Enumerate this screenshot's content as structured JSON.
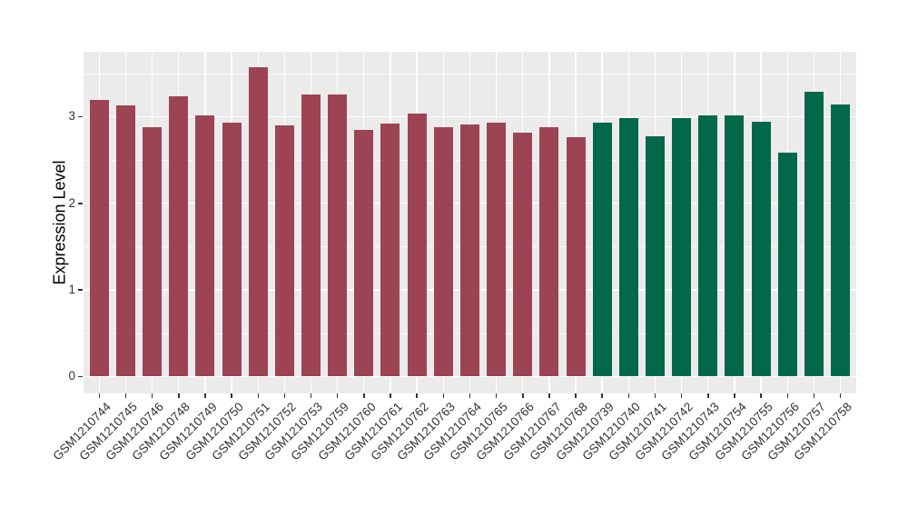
{
  "chart_data": {
    "type": "bar",
    "title": "",
    "xlabel": "",
    "ylabel": "Expression Level",
    "ylim": [
      -0.19,
      3.75
    ],
    "y_major_ticks": [
      0,
      1,
      2,
      3
    ],
    "y_minor_ticks": [
      0.5,
      1.5,
      2.5,
      3.5
    ],
    "grid": "on",
    "legend_position": "none",
    "panel_background": "#EBEBEB",
    "grid_color": "#FFFFFF",
    "tick_text_color": "#333333",
    "categories": [
      "GSM1210744",
      "GSM1210745",
      "GSM1210746",
      "GSM1210748",
      "GSM1210749",
      "GSM1210750",
      "GSM1210751",
      "GSM1210752",
      "GSM1210753",
      "GSM1210759",
      "GSM1210760",
      "GSM1210761",
      "GSM1210762",
      "GSM1210763",
      "GSM1210764",
      "GSM1210765",
      "GSM1210766",
      "GSM1210767",
      "GSM1210768",
      "GSM1210739",
      "GSM1210740",
      "GSM1210741",
      "GSM1210742",
      "GSM1210743",
      "GSM1210754",
      "GSM1210755",
      "GSM1210756",
      "GSM1210757",
      "GSM1210758"
    ],
    "values": [
      3.19,
      3.13,
      2.88,
      3.23,
      3.01,
      2.93,
      3.57,
      2.9,
      3.26,
      3.26,
      2.85,
      2.92,
      3.03,
      2.88,
      2.91,
      2.93,
      2.81,
      2.88,
      2.76,
      2.93,
      2.98,
      2.77,
      2.98,
      3.01,
      3.01,
      2.94,
      2.58,
      3.29,
      3.14
    ],
    "groups": [
      "maroon",
      "maroon",
      "maroon",
      "maroon",
      "maroon",
      "maroon",
      "maroon",
      "maroon",
      "maroon",
      "maroon",
      "maroon",
      "maroon",
      "maroon",
      "maroon",
      "maroon",
      "maroon",
      "maroon",
      "maroon",
      "maroon",
      "green",
      "green",
      "green",
      "green",
      "green",
      "green",
      "green",
      "green",
      "green",
      "green"
    ],
    "palette": {
      "maroon": "#9C4453",
      "green": "#016849"
    }
  }
}
